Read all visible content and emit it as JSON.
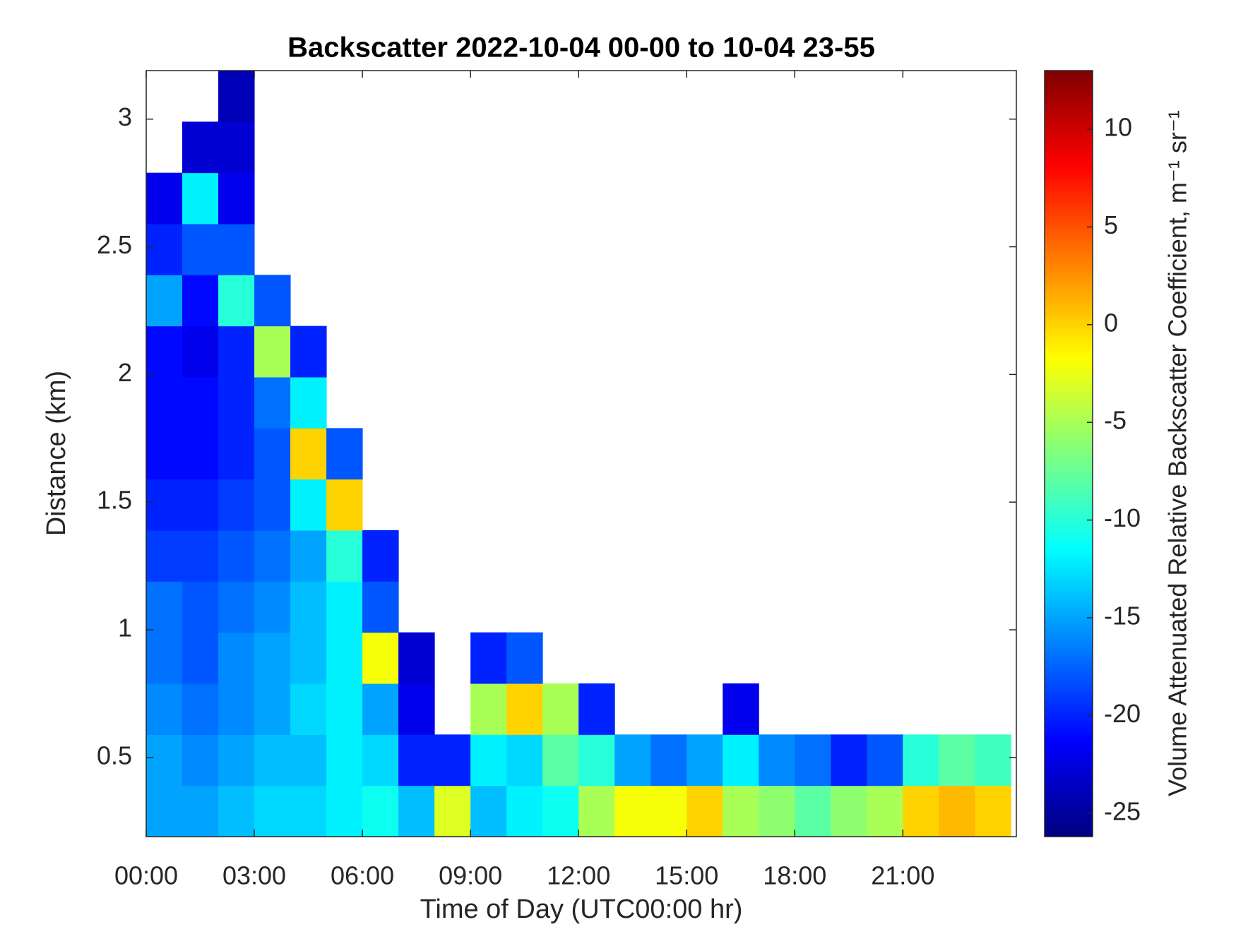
{
  "chart_data": {
    "type": "heatmap",
    "title": "Backscatter 2022-10-04 00-00 to 10-04 23-55",
    "xlabel": "Time of Day (UTC00:00 hr)",
    "ylabel": "Distance (km)",
    "colorbar_label": "Volume Attenuated Relative Backscatter Coefficient, m⁻¹ sr⁻¹",
    "colormap": "jet",
    "x": [
      0,
      1,
      2,
      3,
      4,
      5,
      6,
      7,
      8,
      9,
      10,
      11,
      12,
      13,
      14,
      15,
      16,
      17,
      18,
      19,
      20,
      21,
      22,
      23
    ],
    "y": [
      0.19,
      0.39,
      0.59,
      0.79,
      0.99,
      1.19,
      1.39,
      1.59,
      1.79,
      1.99,
      2.19,
      2.39,
      2.59,
      2.79,
      2.99
    ],
    "z": [
      [
        -15,
        -15,
        -14,
        -13,
        -13,
        -12,
        -11,
        -14,
        -3,
        -14,
        -12,
        -11,
        -5,
        -2,
        -2,
        0,
        -5,
        -6,
        -8,
        -6,
        -5,
        0,
        1,
        0
      ],
      [
        -15,
        -16,
        -15,
        -14,
        -14,
        -12,
        -13,
        -20,
        -20,
        -12,
        -13,
        -8,
        -10,
        -15,
        -17,
        -15,
        -12,
        -16,
        -17,
        -20,
        -18,
        -10,
        -8,
        -9
      ],
      [
        -16,
        -17,
        -16,
        -15,
        -13,
        -12,
        -15,
        -22,
        null,
        -5,
        0,
        -5,
        -20,
        null,
        null,
        null,
        -22,
        null,
        null,
        null,
        null,
        null,
        null,
        null
      ],
      [
        -17,
        -18,
        -16,
        -15,
        -14,
        -12,
        -2,
        -23,
        null,
        -20,
        -18,
        null,
        null,
        null,
        null,
        null,
        null,
        null,
        null,
        null,
        null,
        null,
        null,
        null
      ],
      [
        -17,
        -18,
        -17,
        -16,
        -14,
        -12,
        -18,
        null,
        null,
        null,
        null,
        null,
        null,
        null,
        null,
        null,
        null,
        null,
        null,
        null,
        null,
        null,
        null,
        null
      ],
      [
        -19,
        -19,
        -18,
        -17,
        -15,
        -10,
        -20,
        null,
        null,
        null,
        null,
        null,
        null,
        null,
        null,
        null,
        null,
        null,
        null,
        null,
        null,
        null,
        null,
        null
      ],
      [
        -20,
        -20,
        -19,
        -18,
        -12,
        0,
        null,
        null,
        null,
        null,
        null,
        null,
        null,
        null,
        null,
        null,
        null,
        null,
        null,
        null,
        null,
        null,
        null,
        null
      ],
      [
        -21,
        -21,
        -20,
        -18,
        0,
        -18,
        null,
        null,
        null,
        null,
        null,
        null,
        null,
        null,
        null,
        null,
        null,
        null,
        null,
        null,
        null,
        null,
        null,
        null
      ],
      [
        -21,
        -21,
        -20,
        -17,
        -12,
        null,
        null,
        null,
        null,
        null,
        null,
        null,
        null,
        null,
        null,
        null,
        null,
        null,
        null,
        null,
        null,
        null,
        null,
        null
      ],
      [
        -21,
        -22,
        -20,
        -5,
        -20,
        null,
        null,
        null,
        null,
        null,
        null,
        null,
        null,
        null,
        null,
        null,
        null,
        null,
        null,
        null,
        null,
        null,
        null,
        null
      ],
      [
        -15,
        -21,
        -10,
        -18,
        null,
        null,
        null,
        null,
        null,
        null,
        null,
        null,
        null,
        null,
        null,
        null,
        null,
        null,
        null,
        null,
        null,
        null,
        null,
        null
      ],
      [
        -20,
        -18,
        -18,
        null,
        null,
        null,
        null,
        null,
        null,
        null,
        null,
        null,
        null,
        null,
        null,
        null,
        null,
        null,
        null,
        null,
        null,
        null,
        null,
        null
      ],
      [
        -22,
        -12,
        -22,
        null,
        null,
        null,
        null,
        null,
        null,
        null,
        null,
        null,
        null,
        null,
        null,
        null,
        null,
        null,
        null,
        null,
        null,
        null,
        null,
        null
      ],
      [
        null,
        -23,
        -23,
        null,
        null,
        null,
        null,
        null,
        null,
        null,
        null,
        null,
        null,
        null,
        null,
        null,
        null,
        null,
        null,
        null,
        null,
        null,
        null,
        null
      ],
      [
        null,
        null,
        -24,
        null,
        null,
        null,
        null,
        null,
        null,
        null,
        null,
        null,
        null,
        null,
        null,
        null,
        null,
        null,
        null,
        null,
        null,
        null,
        null,
        null
      ]
    ],
    "xlim": [
      0,
      24.15
    ],
    "ylim": [
      0.19,
      3.19
    ],
    "xticks": [
      {
        "value": 0,
        "label": "00:00"
      },
      {
        "value": 3,
        "label": "03:00"
      },
      {
        "value": 6,
        "label": "06:00"
      },
      {
        "value": 9,
        "label": "09:00"
      },
      {
        "value": 12,
        "label": "12:00"
      },
      {
        "value": 15,
        "label": "15:00"
      },
      {
        "value": 18,
        "label": "18:00"
      },
      {
        "value": 21,
        "label": "21:00"
      }
    ],
    "yticks": [
      0.5,
      1,
      1.5,
      2,
      2.5,
      3
    ],
    "clim": [
      -26.2,
      13
    ],
    "cticks": [
      -25,
      -20,
      -15,
      -10,
      -5,
      0,
      5,
      10
    ]
  }
}
